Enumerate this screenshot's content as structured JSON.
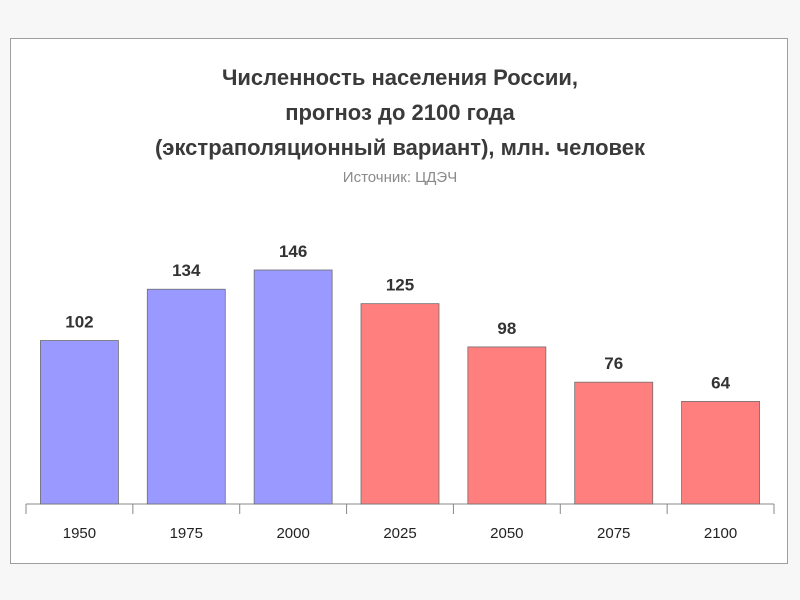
{
  "title_lines": [
    "Численность населения России,",
    "прогноз до 2100 года",
    "(экстраполяционный вариант), млн. человек"
  ],
  "source": "Источник: ЦДЭЧ",
  "colors": {
    "historical": "#9999ff",
    "forecast": "#ff7f7f"
  },
  "chart_data": {
    "type": "bar",
    "categories": [
      "1950",
      "1975",
      "2000",
      "2025",
      "2050",
      "2075",
      "2100"
    ],
    "values": [
      102,
      134,
      146,
      125,
      98,
      76,
      64
    ],
    "kinds": [
      "historical",
      "historical",
      "historical",
      "forecast",
      "forecast",
      "forecast",
      "forecast"
    ],
    "data_labels": [
      "102",
      "134",
      "146",
      "125",
      "98",
      "76",
      "64"
    ],
    "ylim": [
      0,
      146
    ],
    "grid": false,
    "legend": "none"
  }
}
